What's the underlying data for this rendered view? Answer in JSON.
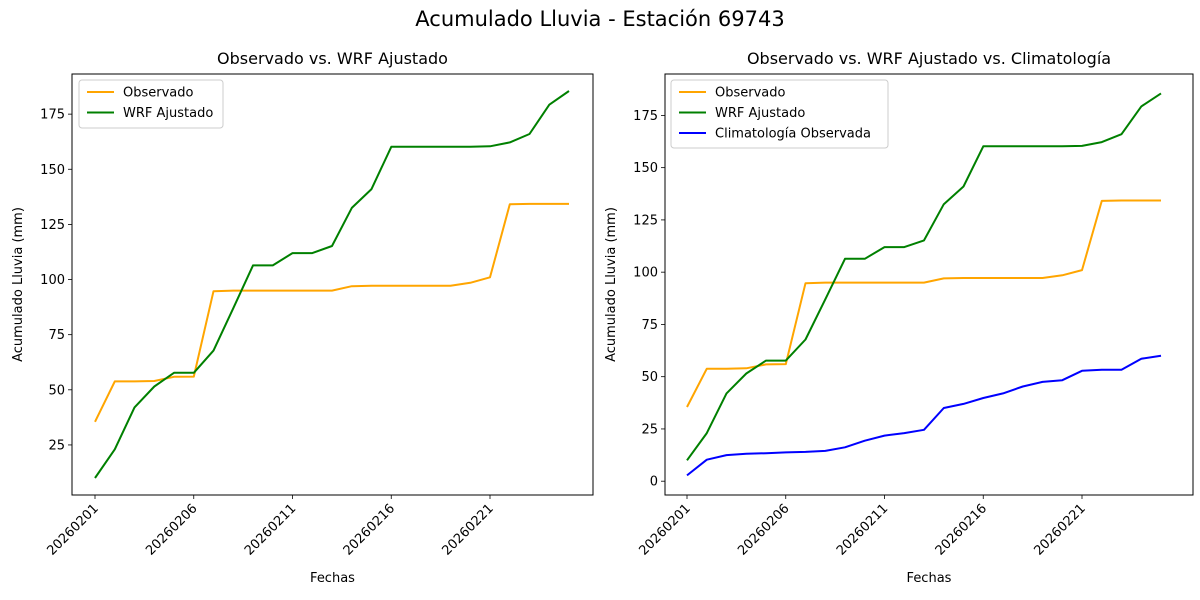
{
  "suptitle": "Acumulado Lluvia - Estación 69743",
  "colors": {
    "observado": "#ffa500",
    "wrf": "#008000",
    "clima": "#0000ff"
  },
  "chart_data": [
    {
      "type": "line",
      "title": "Observado vs. WRF Ajustado",
      "xlabel": "Fechas",
      "ylabel": "Acumulado Lluvia (mm)",
      "ylim": [
        2.3,
        193.2
      ],
      "x_tick_labels": [
        "20260201",
        "20260206",
        "20260211",
        "20260216",
        "20260221"
      ],
      "y_ticks": [
        25,
        50,
        75,
        100,
        125,
        150,
        175
      ],
      "legend_position": "top-left",
      "x": [
        "20260201",
        "20260202",
        "20260203",
        "20260204",
        "20260205",
        "20260206",
        "20260207",
        "20260208",
        "20260209",
        "20260210",
        "20260211",
        "20260212",
        "20260213",
        "20260214",
        "20260215",
        "20260216",
        "20260217",
        "20260218",
        "20260219",
        "20260220",
        "20260221",
        "20260222",
        "20260223",
        "20260224",
        "20260225"
      ],
      "series": [
        {
          "name": "Observado",
          "color_key": "observado",
          "values": [
            35.5,
            53.8,
            53.8,
            54.0,
            55.9,
            56.0,
            94.7,
            95.0,
            95.0,
            95.0,
            95.0,
            95.0,
            95.0,
            97.0,
            97.2,
            97.2,
            97.2,
            97.2,
            97.2,
            98.5,
            101.0,
            134.1,
            134.3,
            134.3,
            134.3
          ]
        },
        {
          "name": "WRF Ajustado",
          "color_key": "wrf",
          "values": [
            10.0,
            23.0,
            42.0,
            51.5,
            57.7,
            57.7,
            67.8,
            87.0,
            106.4,
            106.4,
            112.0,
            112.0,
            115.2,
            132.5,
            141.0,
            160.2,
            160.2,
            160.2,
            160.2,
            160.2,
            160.4,
            162.2,
            166.0,
            179.3,
            185.5
          ]
        }
      ]
    },
    {
      "type": "line",
      "title": "Observado vs. WRF Ajustado vs. Climatología",
      "xlabel": "Fechas",
      "ylabel": "Acumulado Lluvia (mm)",
      "ylim": [
        -6.6,
        194.8
      ],
      "x_tick_labels": [
        "20260201",
        "20260206",
        "20260211",
        "20260216",
        "20260221"
      ],
      "y_ticks": [
        0,
        25,
        50,
        75,
        100,
        125,
        150,
        175
      ],
      "legend_position": "top-left",
      "x": [
        "20260201",
        "20260202",
        "20260203",
        "20260204",
        "20260205",
        "20260206",
        "20260207",
        "20260208",
        "20260209",
        "20260210",
        "20260211",
        "20260212",
        "20260213",
        "20260214",
        "20260215",
        "20260216",
        "20260217",
        "20260218",
        "20260219",
        "20260220",
        "20260221",
        "20260222",
        "20260223",
        "20260224",
        "20260225"
      ],
      "series": [
        {
          "name": "Observado",
          "color_key": "observado",
          "values": [
            35.5,
            53.8,
            53.8,
            54.0,
            55.9,
            56.0,
            94.7,
            95.0,
            95.0,
            95.0,
            95.0,
            95.0,
            95.0,
            97.0,
            97.2,
            97.2,
            97.2,
            97.2,
            97.2,
            98.5,
            101.0,
            134.1,
            134.3,
            134.3,
            134.3
          ]
        },
        {
          "name": "WRF Ajustado",
          "color_key": "wrf",
          "values": [
            10.0,
            23.0,
            42.0,
            51.5,
            57.7,
            57.7,
            67.8,
            87.0,
            106.4,
            106.4,
            112.0,
            112.0,
            115.2,
            132.5,
            141.0,
            160.2,
            160.2,
            160.2,
            160.2,
            160.2,
            160.4,
            162.2,
            166.0,
            179.3,
            185.5
          ]
        },
        {
          "name": "Climatología Observada",
          "color_key": "clima",
          "values": [
            2.8,
            10.3,
            12.5,
            13.1,
            13.4,
            13.8,
            14.0,
            14.5,
            16.2,
            19.4,
            21.8,
            23.0,
            24.6,
            35.0,
            37.0,
            39.8,
            42.0,
            45.3,
            47.5,
            48.3,
            52.8,
            53.3,
            53.3,
            58.6,
            60.0
          ]
        }
      ]
    }
  ]
}
